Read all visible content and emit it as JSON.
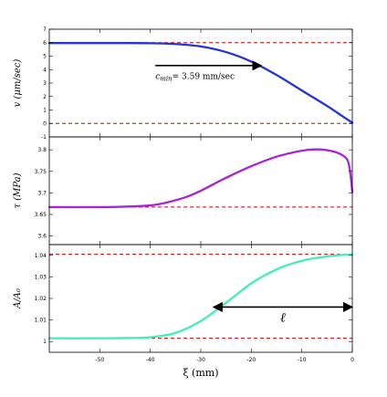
{
  "chart_data": [
    {
      "type": "line",
      "ylabel": "v  (μm/sec)",
      "xlim": [
        -60,
        0
      ],
      "ylim": [
        -1,
        7
      ],
      "yticks": [
        -1,
        0,
        1,
        2,
        3,
        4,
        5,
        6,
        7
      ],
      "grid": false,
      "series": [
        {
          "color": "#2233dd",
          "x": [
            -60,
            -50,
            -45,
            -40,
            -35,
            -30,
            -25,
            -20,
            -15,
            -10,
            -5,
            -2,
            0
          ],
          "y": [
            5.97,
            5.97,
            5.97,
            5.96,
            5.9,
            5.72,
            5.3,
            4.6,
            3.6,
            2.45,
            1.3,
            0.55,
            0.05
          ]
        }
      ],
      "reference_lines": [
        {
          "y": 6.0,
          "color": "#cc0000",
          "style": "dashed"
        },
        {
          "y": 0.0,
          "color": "#cc0000",
          "style": "dashed"
        }
      ],
      "annotations": [
        {
          "type": "arrow",
          "x_from": -39,
          "x_to": -18,
          "y": 4.3
        },
        {
          "type": "text",
          "text": "c_min = 3.59 mm/sec",
          "x": -39,
          "y": 3.3
        }
      ],
      "annotation_text": {
        "sym": "c",
        "sub": "min",
        "rest": "= 3.59 mm/sec"
      }
    },
    {
      "type": "line",
      "ylabel": "τ  (MPa)",
      "xlim": [
        -60,
        0
      ],
      "ylim": [
        3.58,
        3.83
      ],
      "yticks": [
        3.6,
        3.65,
        3.7,
        3.75,
        3.8
      ],
      "grid": false,
      "series": [
        {
          "color": "#aa22dd",
          "x": [
            -60,
            -50,
            -45,
            -40,
            -37,
            -33,
            -30,
            -25,
            -20,
            -15,
            -10,
            -7,
            -4,
            -2,
            -1,
            -0.5,
            0
          ],
          "y": [
            3.667,
            3.667,
            3.668,
            3.671,
            3.677,
            3.69,
            3.705,
            3.735,
            3.762,
            3.784,
            3.798,
            3.801,
            3.797,
            3.788,
            3.777,
            3.755,
            3.702
          ]
        }
      ],
      "reference_lines": [
        {
          "y": 3.667,
          "color": "#cc0000",
          "style": "dashed"
        }
      ]
    },
    {
      "type": "line",
      "ylabel": "A/A₀",
      "xlabel": "ξ (mm)",
      "xlim": [
        -60,
        0
      ],
      "ylim": [
        0.995,
        1.045
      ],
      "yticks": [
        1.0,
        1.01,
        1.02,
        1.03,
        1.04
      ],
      "xticks": [
        -50,
        -40,
        -30,
        -20,
        -10,
        0
      ],
      "grid": false,
      "series": [
        {
          "color": "#44eebb",
          "x": [
            -60,
            -50,
            -45,
            -40,
            -35,
            -30,
            -25,
            -20,
            -15,
            -10,
            -5,
            0
          ],
          "y": [
            1.0015,
            1.0015,
            1.0016,
            1.002,
            1.004,
            1.0095,
            1.018,
            1.027,
            1.0335,
            1.0375,
            1.0395,
            1.0405
          ]
        }
      ],
      "reference_lines": [
        {
          "y": 1.0405,
          "color": "#cc0000",
          "style": "dashed"
        },
        {
          "y": 1.0015,
          "color": "#cc0000",
          "style": "dashed"
        }
      ],
      "annotations": [
        {
          "type": "double-arrow",
          "x_from": -27.5,
          "x_to": 0,
          "y": 1.016,
          "label": "ℓ"
        }
      ]
    }
  ]
}
